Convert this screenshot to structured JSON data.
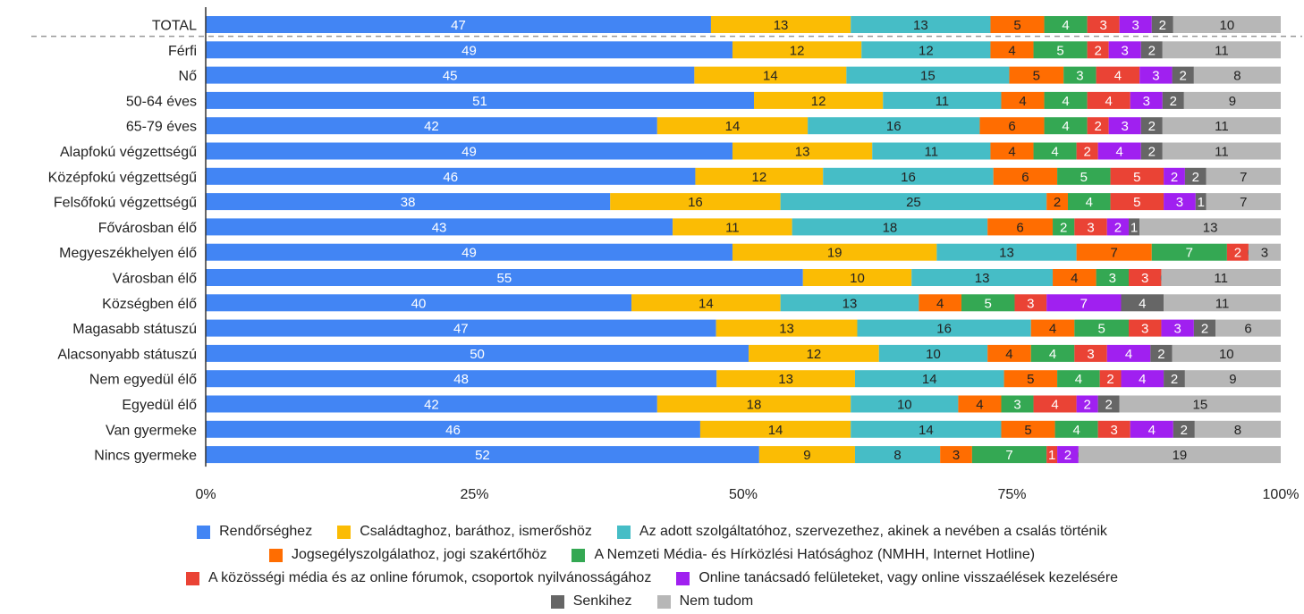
{
  "chart_data": {
    "type": "bar",
    "orientation": "horizontal",
    "stacked": true,
    "normalized_percent": true,
    "title": "",
    "xlabel": "",
    "ylabel": "",
    "xlim": [
      0,
      100
    ],
    "x_ticks": [
      "0%",
      "25%",
      "50%",
      "75%",
      "100%"
    ],
    "legend_position": "bottom",
    "grid": false,
    "categories": [
      "TOTAL",
      "Férfi",
      "Nő",
      "50-64 éves",
      "65-79 éves",
      "Alapfokú végzettségű",
      "Középfokú végzettségű",
      "Felsőfokú végzettségű",
      "Fővárosban élő",
      "Megyeszékhelyen élő",
      "Városban élő",
      "Községben élő",
      "Magasabb státuszú",
      "Alacsonyabb státuszú",
      "Nem egyedül élő",
      "Egyedül élő",
      "Van gyermeke",
      "Nincs gyermeke"
    ],
    "series": [
      {
        "name": "Rendőrséghez",
        "color": "#4285F4",
        "label_color": "#ffffff",
        "values": [
          47,
          49,
          45,
          51,
          42,
          49,
          46,
          38,
          43,
          49,
          55,
          40,
          47,
          50,
          48,
          42,
          46,
          52
        ]
      },
      {
        "name": "Családtaghoz, baráthoz, ismerőshöz",
        "color": "#FBBC04",
        "label_color": "#222222",
        "values": [
          13,
          12,
          14,
          12,
          14,
          13,
          12,
          16,
          11,
          19,
          10,
          14,
          13,
          12,
          13,
          18,
          14,
          9
        ]
      },
      {
        "name": "Az adott szolgáltatóhoz, szervezethez, akinek a nevében a csalás történik",
        "color": "#46BDC6",
        "label_color": "#222222",
        "values": [
          13,
          12,
          15,
          11,
          16,
          11,
          16,
          25,
          18,
          13,
          13,
          13,
          16,
          10,
          14,
          10,
          14,
          8
        ]
      },
      {
        "name": "Jogsegélyszolgálathoz, jogi szakértőhöz",
        "color": "#FF6D01",
        "label_color": "#222222",
        "values": [
          5,
          4,
          5,
          4,
          6,
          4,
          6,
          2,
          6,
          7,
          4,
          4,
          4,
          4,
          5,
          4,
          5,
          3
        ]
      },
      {
        "name": "A Nemzeti Média- és Hírközlési Hatósághoz (NMHH, Internet Hotline)",
        "color": "#34A853",
        "label_color": "#ffffff",
        "values": [
          4,
          5,
          3,
          4,
          4,
          4,
          5,
          4,
          2,
          7,
          3,
          5,
          5,
          4,
          4,
          3,
          4,
          7
        ]
      },
      {
        "name": "A közösségi média és az online fórumok, csoportok nyilvánosságához",
        "color": "#EA4335",
        "label_color": "#ffffff",
        "values": [
          3,
          2,
          4,
          4,
          2,
          2,
          5,
          5,
          3,
          2,
          3,
          3,
          3,
          3,
          2,
          4,
          3,
          1
        ]
      },
      {
        "name": "Online tanácsadó felületeket, vagy online visszaélések kezelésére",
        "color": "#A020F0",
        "label_color": "#ffffff",
        "values": [
          3,
          3,
          3,
          3,
          3,
          4,
          2,
          3,
          2,
          0,
          0,
          7,
          3,
          4,
          4,
          2,
          4,
          2
        ]
      },
      {
        "name": "Senkihez",
        "color": "#666666",
        "label_color": "#ffffff",
        "values": [
          2,
          2,
          2,
          2,
          2,
          2,
          2,
          1,
          1,
          0,
          0,
          4,
          2,
          2,
          2,
          2,
          2,
          0
        ]
      },
      {
        "name": "Nem tudom",
        "color": "#B7B7B7",
        "label_color": "#222222",
        "values": [
          10,
          11,
          8,
          9,
          11,
          11,
          7,
          7,
          13,
          3,
          11,
          11,
          6,
          10,
          9,
          15,
          8,
          19
        ]
      }
    ]
  }
}
